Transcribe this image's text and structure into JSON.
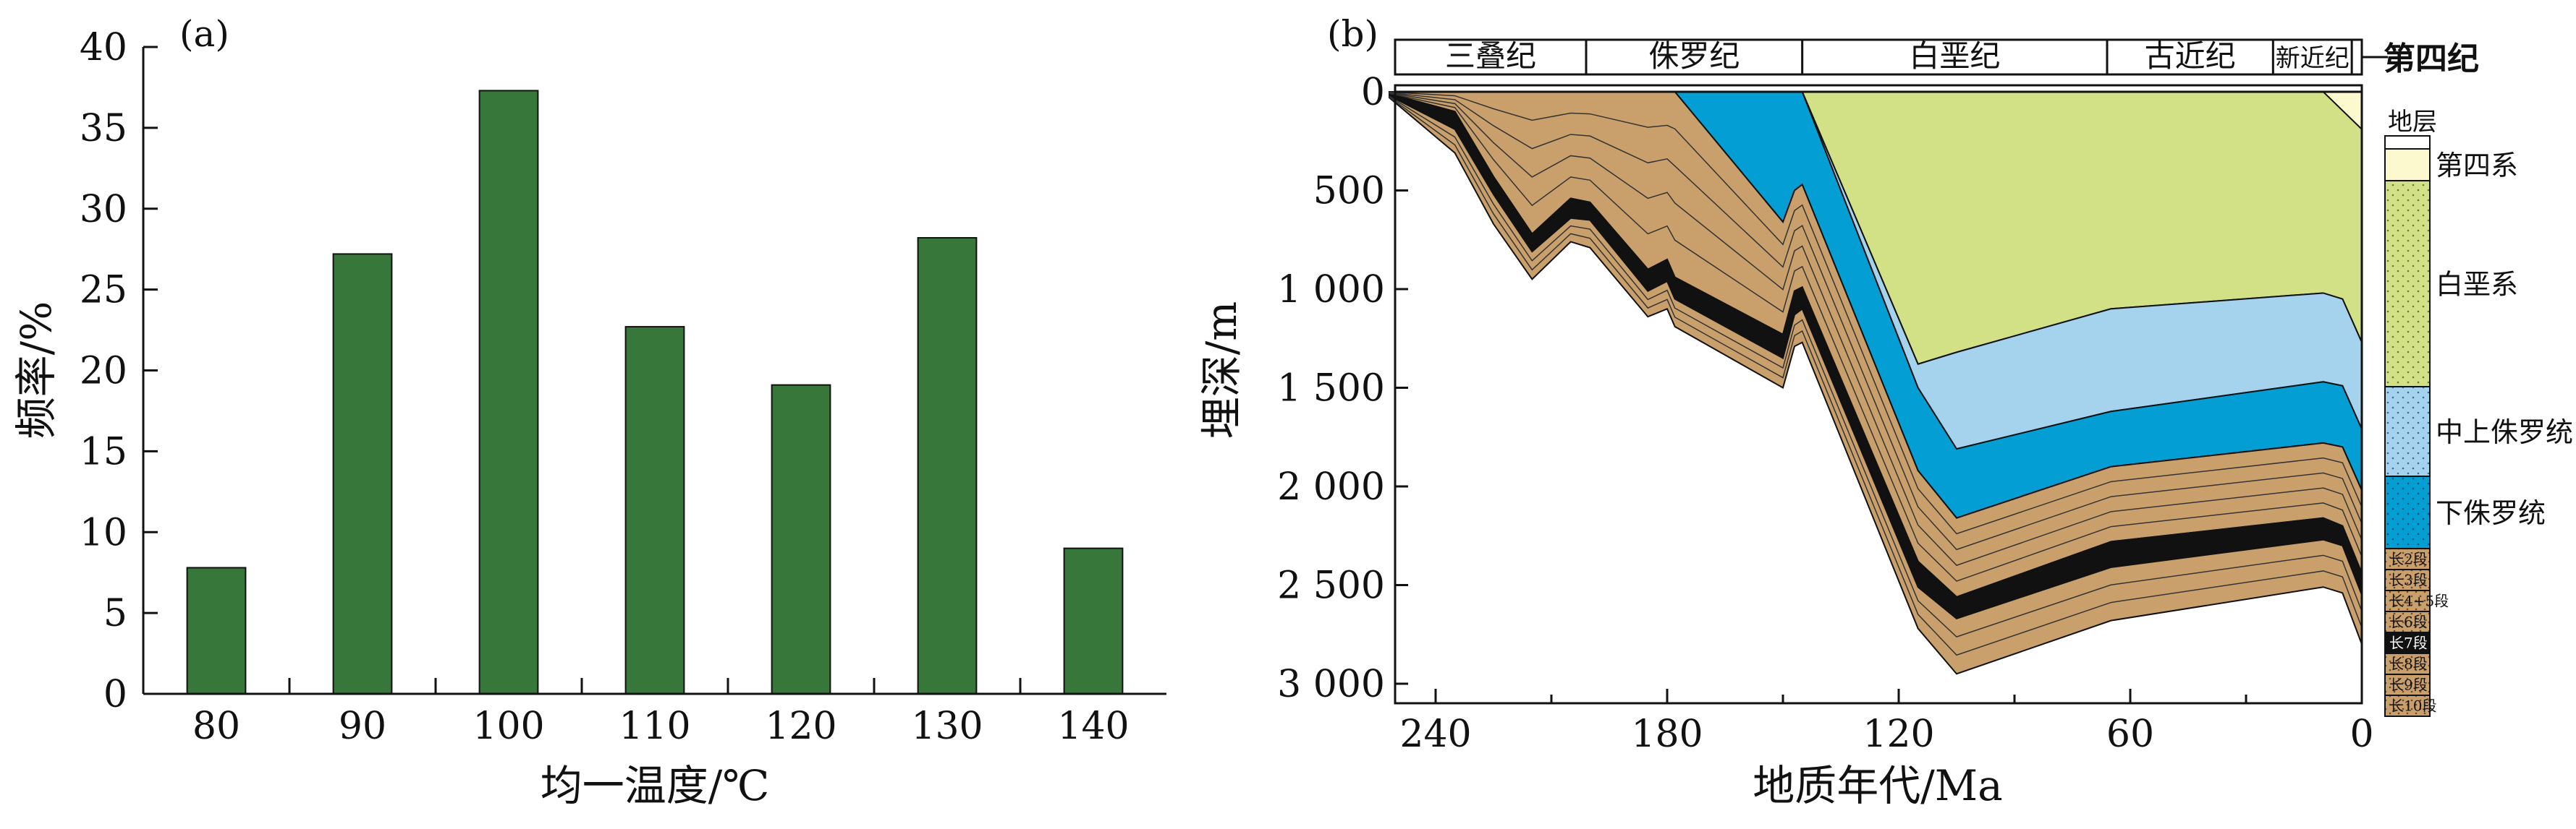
{
  "chart_data": [
    {
      "panel_label": "(a)",
      "type": "bar",
      "categories": [
        "80",
        "90",
        "100",
        "110",
        "120",
        "130",
        "140"
      ],
      "values": [
        7.8,
        27.2,
        37.3,
        22.7,
        19.1,
        28.2,
        9.0
      ],
      "ylim": [
        0,
        40
      ],
      "yticks": [
        "0",
        "5",
        "10",
        "15",
        "20",
        "25",
        "30",
        "35",
        "40"
      ],
      "xlabel": "均一温度/℃",
      "ylabel": "频率/%",
      "bar_color": "#38773a",
      "grid": false
    },
    {
      "panel_label": "(b)",
      "type": "area",
      "xlabel": "地质年代/Ma",
      "ylabel": "埋深/m",
      "xlim": [
        240,
        0
      ],
      "ylim": [
        0,
        3100
      ],
      "x_reversed": true,
      "y_reversed": true,
      "xticks": [
        "240",
        "180",
        "120",
        "60",
        "0"
      ],
      "yticks": [
        "0",
        "500",
        "1 000",
        "1 500",
        "2 000",
        "2 500",
        "3 000"
      ],
      "periods": [
        {
          "name": "三叠纪",
          "from": 252,
          "to": 201
        },
        {
          "name": "侏罗纪",
          "from": 201,
          "to": 145
        },
        {
          "name": "白垩纪",
          "from": 145,
          "to": 66
        },
        {
          "name": "古近纪",
          "from": 66,
          "to": 23
        },
        {
          "name": "新近纪",
          "from": 23,
          "to": 2.6
        }
      ],
      "quaternary_label": "第四纪",
      "ages": [
        252,
        235,
        225,
        215,
        205,
        200,
        185,
        180,
        178,
        150,
        147,
        145,
        115,
        105,
        65,
        10,
        5,
        0
      ],
      "surfaces": [
        {
          "name": "top",
          "depths": [
            0,
            0,
            0,
            0,
            0,
            0,
            0,
            0,
            0,
            0,
            0,
            0,
            0,
            0,
            0,
            0,
            0,
            0
          ]
        },
        {
          "name": "上侏罗统顶",
          "depths": [
            0,
            0,
            0,
            0,
            0,
            0,
            0,
            0,
            0,
            0,
            0,
            0,
            0,
            0,
            0,
            0,
            0,
            0
          ]
        },
        {
          "name": "白垩系底",
          "depths": [
            0,
            0,
            0,
            0,
            0,
            0,
            0,
            0,
            0,
            0,
            0,
            0,
            1380,
            1320,
            1100,
            1020,
            1050,
            1270
          ]
        },
        {
          "name": "中上侏罗统底",
          "depths": [
            0,
            0,
            0,
            0,
            0,
            0,
            0,
            0,
            0,
            0,
            0,
            0,
            1500,
            1810,
            1620,
            1470,
            1490,
            1710
          ]
        },
        {
          "name": "下侏罗统底",
          "depths": [
            0,
            0,
            0,
            0,
            0,
            0,
            0,
            0,
            0,
            660,
            500,
            470,
            1920,
            2160,
            1900,
            1780,
            1800,
            2020
          ]
        },
        {
          "name": "长2段底",
          "depths": [
            0,
            10,
            330,
            630,
            450,
            470,
            760,
            730,
            820,
            1100,
            900,
            870,
            2220,
            2410,
            2120,
            1990,
            2020,
            2270
          ]
        },
        {
          "name": "长7段顶",
          "depths": [
            10,
            100,
            430,
            720,
            540,
            560,
            900,
            850,
            940,
            1230,
            1010,
            990,
            2380,
            2560,
            2280,
            2160,
            2200,
            2440
          ]
        },
        {
          "name": "长7段底",
          "depths": [
            20,
            190,
            520,
            810,
            640,
            650,
            1010,
            960,
            1050,
            1350,
            1130,
            1100,
            2510,
            2670,
            2410,
            2270,
            2300,
            2550
          ]
        },
        {
          "name": "长10段底",
          "depths": [
            30,
            310,
            670,
            950,
            760,
            790,
            1140,
            1100,
            1190,
            1500,
            1290,
            1270,
            2720,
            2950,
            2680,
            2510,
            2540,
            2800
          ]
        }
      ],
      "legend": {
        "title": "地层",
        "items": [
          {
            "name": "第四系",
            "color": "#fdf9cf"
          },
          {
            "name": "白垩系",
            "color": "#d3e186"
          },
          {
            "name": "中上侏罗统",
            "color": "#a5d3ee"
          },
          {
            "name": "下侏罗统",
            "color": "#039ed3"
          },
          {
            "name": "长2段",
            "color": "#c9a06b"
          },
          {
            "name": "长3段",
            "color": "#c9a06b"
          },
          {
            "name": "长4+5段",
            "color": "#c9a06b"
          },
          {
            "name": "长6段",
            "color": "#c9a06b"
          },
          {
            "name": "长7段",
            "color": "#111111"
          },
          {
            "name": "长8段",
            "color": "#c9a06b"
          },
          {
            "name": "长9段",
            "color": "#c9a06b"
          },
          {
            "name": "长10段",
            "color": "#c9a06b"
          }
        ]
      }
    }
  ]
}
